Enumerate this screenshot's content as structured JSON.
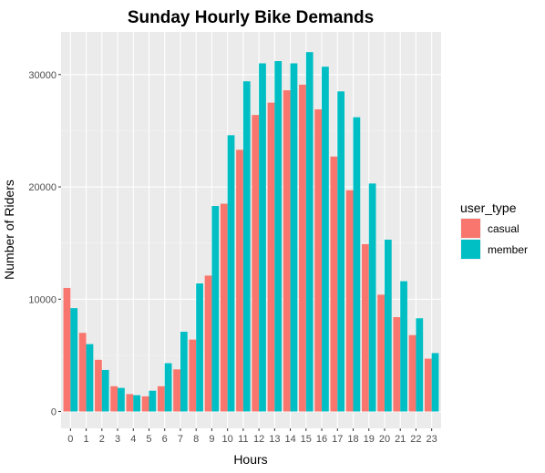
{
  "chart_data": {
    "type": "bar",
    "title": "Sunday Hourly Bike Demands",
    "xlabel": "Hours",
    "ylabel": "Number of Riders",
    "categories": [
      "0",
      "1",
      "2",
      "3",
      "4",
      "5",
      "6",
      "7",
      "8",
      "9",
      "10",
      "11",
      "12",
      "13",
      "14",
      "15",
      "16",
      "17",
      "18",
      "19",
      "20",
      "21",
      "22",
      "23"
    ],
    "y_ticks": [
      0,
      10000,
      20000,
      30000
    ],
    "y_tick_labels": [
      "0",
      "10000",
      "20000",
      "30000"
    ],
    "ylim": [
      -1500,
      33800
    ],
    "grid": true,
    "legend": {
      "title": "user_type",
      "placement": "right"
    },
    "series": [
      {
        "name": "casual",
        "color": "#F8766D",
        "values": [
          11000,
          7000,
          4600,
          2250,
          1550,
          1350,
          2250,
          3750,
          6400,
          12100,
          18500,
          23300,
          26400,
          27500,
          28600,
          29100,
          26900,
          22700,
          19700,
          14900,
          10400,
          8400,
          6800,
          4700
        ]
      },
      {
        "name": "member",
        "color": "#00BFC4",
        "values": [
          9200,
          6000,
          3700,
          2100,
          1450,
          1850,
          4300,
          7100,
          11400,
          18300,
          24600,
          29400,
          31000,
          31200,
          31000,
          32000,
          30700,
          28500,
          26200,
          20300,
          15300,
          11600,
          8300,
          5200
        ]
      }
    ]
  }
}
